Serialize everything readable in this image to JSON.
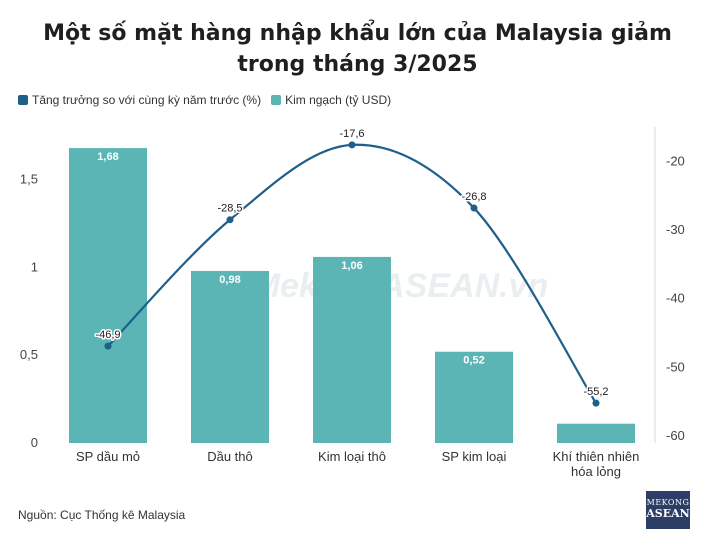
{
  "title_line1": "Một số mặt hàng nhập khẩu lớn của Malaysia giảm",
  "title_line2": "trong tháng 3/2025",
  "source": "Nguồn: Cục Thống kê Malaysia",
  "watermark": "MekongASEAN.vn",
  "logo": {
    "line1": "MEKONG",
    "line2": "ASEAN"
  },
  "chart_data": {
    "type": "bar",
    "categories": [
      "SP dầu mỏ",
      "Dầu thô",
      "Kim loại thô",
      "SP kim loại",
      "Khí thiên nhiên hóa lỏng"
    ],
    "category_lines": [
      [
        "SP dầu mỏ"
      ],
      [
        "Dầu thô"
      ],
      [
        "Kim loại thô"
      ],
      [
        "SP kim loại"
      ],
      [
        "Khí thiên nhiên",
        "hóa lỏng"
      ]
    ],
    "series": [
      {
        "name": "Kim ngạch (tỷ USD)",
        "type": "bar",
        "axis": "left",
        "color": "#5bb5b4",
        "values": [
          1.68,
          0.98,
          1.06,
          0.52,
          0.11
        ],
        "labels": [
          "1,68",
          "0,98",
          "1,06",
          "0,52",
          ""
        ]
      },
      {
        "name": "Tăng trưởng so với cùng kỳ năm trước (%)",
        "type": "line",
        "axis": "right",
        "color": "#1f5f8b",
        "values": [
          -46.9,
          -28.5,
          -17.6,
          -26.8,
          -55.2
        ],
        "labels": [
          "-46,9",
          "-28,5",
          "-17,6",
          "-26,8",
          "-55,2"
        ]
      }
    ],
    "left_axis": {
      "range": [
        0,
        1.8
      ],
      "ticks": [
        0,
        0.5,
        1,
        1.5
      ],
      "tick_labels": [
        "0",
        "0,5",
        "1",
        "1,5"
      ]
    },
    "right_axis": {
      "range": [
        -61,
        -15
      ],
      "ticks": [
        -60,
        -50,
        -40,
        -30,
        -20
      ],
      "tick_labels": [
        "-60",
        "-50",
        "-40",
        "-30",
        "-20"
      ]
    },
    "legend_position": "top-left",
    "grid": false
  }
}
